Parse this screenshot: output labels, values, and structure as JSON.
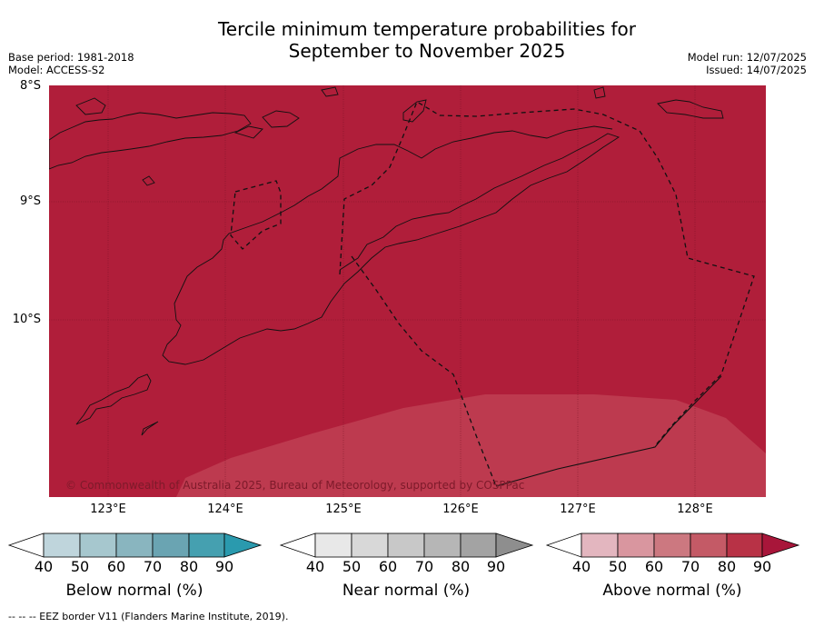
{
  "title_line1": "Tercile minimum temperature probabilities for",
  "title_line2": "September to November 2025",
  "base_period": "Base period: 1981-2018",
  "model": "Model: ACCESS-S2",
  "model_run": "Model run: 12/07/2025",
  "issued": "Issued: 14/07/2025",
  "lat_labels": [
    "8°S",
    "9°S",
    "10°S"
  ],
  "lon_labels": [
    "123°E",
    "124°E",
    "125°E",
    "126°E",
    "127°E",
    "128°E"
  ],
  "copyright": "© Commonwealth of Australia 2025, Bureau of Meteorology, supported by COSPPac",
  "colors": {
    "prob_90": "#b01e3a",
    "prob_80": "#bd3a4f",
    "below": [
      "#bfd5dc",
      "#a6c7ce",
      "#89b5bf",
      "#6aa4b2",
      "#45a0b0",
      "#2a9aae"
    ],
    "near": [
      "#e8e8e8",
      "#d8d8d8",
      "#c8c8c8",
      "#b6b6b6",
      "#a3a3a3",
      "#8e8e8e"
    ],
    "above": [
      "#e3b6bf",
      "#d9969f",
      "#cc7880",
      "#c45a66",
      "#b83246",
      "#a8163a"
    ]
  },
  "legend": {
    "below": {
      "label": "Below normal (%)",
      "ticks": [
        "40",
        "50",
        "60",
        "70",
        "80",
        "90"
      ]
    },
    "near": {
      "label": "Near normal (%)",
      "ticks": [
        "40",
        "50",
        "60",
        "70",
        "80",
        "90"
      ]
    },
    "above": {
      "label": "Above normal (%)",
      "ticks": [
        "40",
        "50",
        "60",
        "70",
        "80",
        "90"
      ]
    }
  },
  "footnote": "-- -- -- EEZ border V11 (Flanders Marine Institute, 2019)."
}
